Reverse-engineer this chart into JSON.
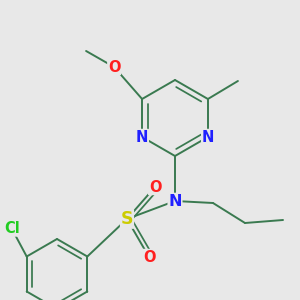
{
  "background_color": "#e8e8e8",
  "bond_color": "#3a7a50",
  "atom_colors": {
    "N": "#2020ff",
    "O": "#ff2020",
    "S": "#cccc00",
    "Cl": "#22cc22"
  },
  "lw": 1.4,
  "lw2": 1.1,
  "fontsize": 10.5
}
